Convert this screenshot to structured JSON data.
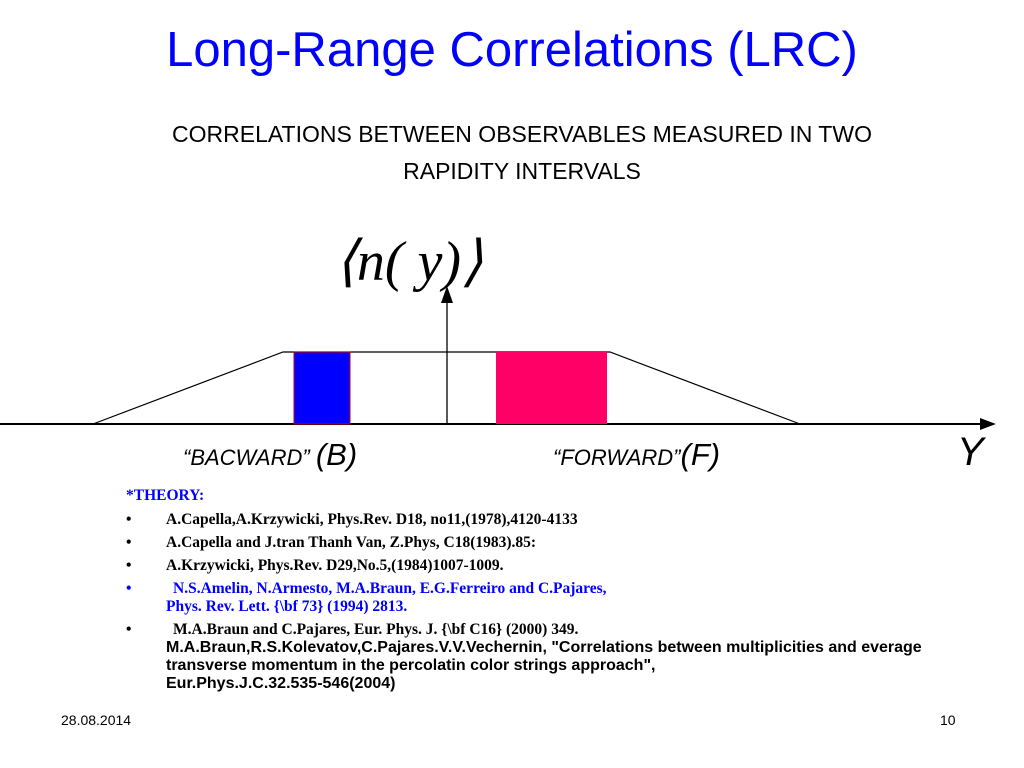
{
  "title": "Long-Range Correlations (LRC)",
  "subtitle_line1": "CORRELATIONS  BETWEEN OBSERVABLES MEASURED IN TWO",
  "subtitle_line2": "RAPIDITY INTERVALS",
  "diagram": {
    "formula": "⟨n( y)⟩",
    "axis_label": "Y",
    "backward_label": "“BACWARD” ",
    "backward_code": "(B)",
    "forward_label": "“FORWARD”",
    "forward_code": "(F)",
    "colors": {
      "backward": "#0000ff",
      "forward": "#ff0066",
      "axis": "#000000"
    }
  },
  "references": {
    "header": "*THEORY:",
    "bullet": "•",
    "items": [
      "A.Capella,A.Krzywicki, Phys.Rev. D18, no11,(1978),4120-4133",
      "A.Capella and J.tran Thanh Van, Z.Phys, C18(1983).85:",
      "A.Krzywicki, Phys.Rev. D29,No.5,(1984)1007-1009.",
      "N.S.Amelin, N.Armesto, M.A.Braun, E.G.Ferreiro and C.Pajares,",
      "Phys. Rev. Lett. {\\bf 73} (1994) 2813.",
      "M.A.Braun and C.Pajares, Eur. Phys. J. {\\bf C16} (2000) 349.",
      "M.A.Braun,R.S.Kolevatov,C.Pajares.V.V.Vechernin, \"Correlations between multiplicities and everage transverse momentum in the percolatin color strings approach\",",
      "Eur.Phys.J.C.32.535-546(2004)"
    ]
  },
  "footer": {
    "date": "28.08.2014",
    "page": "10"
  }
}
